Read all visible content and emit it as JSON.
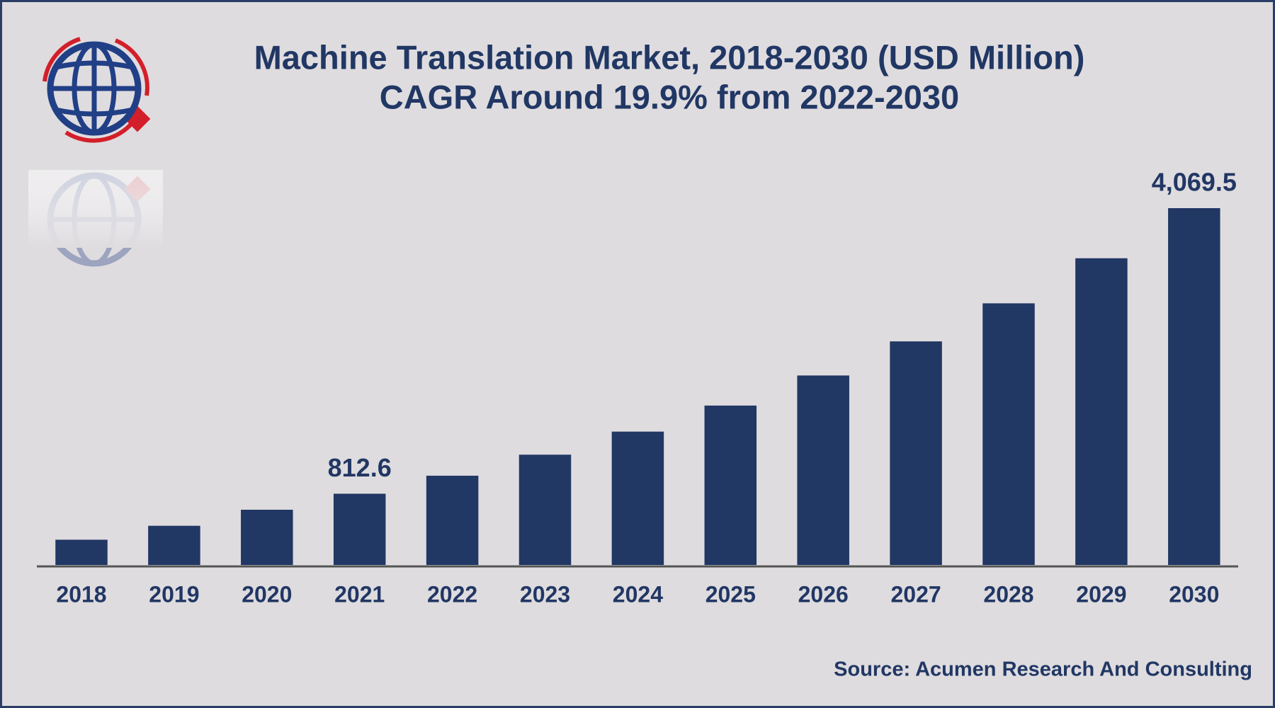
{
  "chart_data": {
    "type": "bar",
    "title": "Machine Translation Market, 2018-2030 (USD Million)",
    "subtitle": "CAGR Around 19.9% from 2022-2030",
    "categories": [
      "2018",
      "2019",
      "2020",
      "2021",
      "2022",
      "2023",
      "2024",
      "2025",
      "2026",
      "2027",
      "2028",
      "2029",
      "2030"
    ],
    "values": [
      288,
      447,
      630,
      812.6,
      1018,
      1258,
      1521,
      1818,
      2161,
      2550,
      2984,
      3498,
      4069.5
    ],
    "value_labels": [
      null,
      null,
      null,
      "812.6",
      null,
      null,
      null,
      null,
      null,
      null,
      null,
      null,
      "4,069.5"
    ],
    "color": "#213764",
    "source": "Source: Acumen Research And Consulting"
  }
}
